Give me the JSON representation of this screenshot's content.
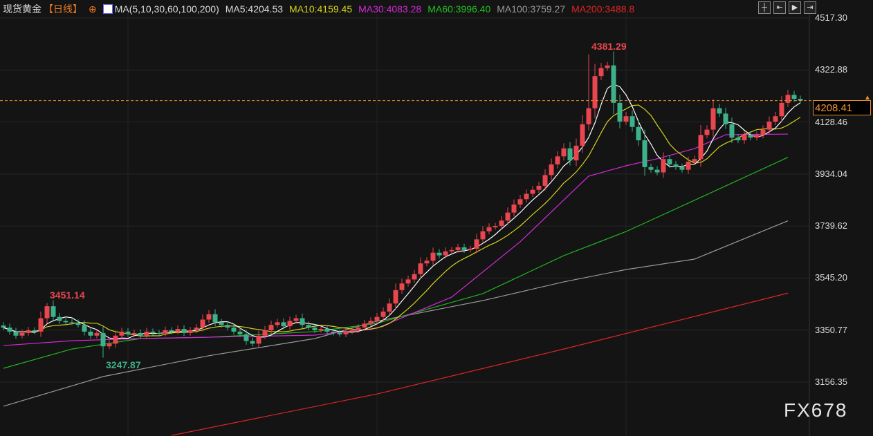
{
  "header": {
    "symbol": "现货黄金",
    "period": "【日线】",
    "indicator": "MA(5,10,30,60,100,200)",
    "ma5": "MA5:4204.53",
    "ma10": "MA10:4159.45",
    "ma30": "MA30:4083.28",
    "ma60": "MA60:3996.40",
    "ma100": "MA100:3759.27",
    "ma200": "MA200:3488.8"
  },
  "toolbar": [
    "crosshair-icon",
    "jump-start-icon",
    "play-icon",
    "exit-icon"
  ],
  "current_price": "4208.41",
  "watermark": "FX678",
  "colors": {
    "up": "#e9464f",
    "down": "#3db28a",
    "ma5": "#ffffff",
    "ma10": "#d6d21c",
    "ma30": "#d22ad6",
    "ma60": "#22b322",
    "ma100": "#9a9a9a",
    "ma200": "#e02424",
    "current": "#e8902c"
  },
  "chart_data": {
    "type": "candlestick",
    "ylim": [
      3000,
      4600
    ],
    "yticks": [
      "4517.30",
      "4322.88",
      "4128.46",
      "3934.04",
      "3739.62",
      "3545.20",
      "3350.77",
      "3156.35"
    ],
    "annotations": [
      {
        "index": 7,
        "label": "3451.14",
        "kind": "high"
      },
      {
        "index": 16,
        "label": "3247.87",
        "kind": "low"
      },
      {
        "index": 94,
        "label": "4381.29",
        "kind": "high"
      }
    ],
    "closes": [
      3360,
      3345,
      3330,
      3340,
      3350,
      3345,
      3395,
      3440,
      3400,
      3385,
      3380,
      3378,
      3370,
      3345,
      3330,
      3340,
      3290,
      3300,
      3330,
      3345,
      3335,
      3340,
      3330,
      3345,
      3340,
      3338,
      3350,
      3345,
      3355,
      3340,
      3350,
      3360,
      3390,
      3410,
      3380,
      3370,
      3360,
      3345,
      3335,
      3310,
      3300,
      3330,
      3350,
      3370,
      3380,
      3365,
      3385,
      3395,
      3370,
      3360,
      3350,
      3355,
      3345,
      3340,
      3335,
      3345,
      3350,
      3360,
      3375,
      3385,
      3400,
      3420,
      3450,
      3500,
      3525,
      3540,
      3560,
      3600,
      3610,
      3640,
      3630,
      3645,
      3650,
      3660,
      3650,
      3655,
      3690,
      3720,
      3735,
      3740,
      3760,
      3790,
      3820,
      3840,
      3860,
      3875,
      3890,
      3930,
      3970,
      4000,
      4030,
      3985,
      4040,
      4120,
      4180,
      4300,
      4330,
      4340,
      4200,
      4130,
      4150,
      4110,
      4060,
      3960,
      3950,
      3940,
      3990,
      3970,
      3960,
      3950,
      3980,
      3990,
      4080,
      4100,
      4180,
      4160,
      4120,
      4070,
      4060,
      4080,
      4070,
      4080,
      4100,
      4130,
      4150,
      4200,
      4230,
      4215,
      4208.41
    ],
    "ma_series": {
      "ma30": [
        [
          0,
          3293
        ],
        [
          11,
          3311
        ],
        [
          22,
          3319
        ],
        [
          33,
          3324
        ],
        [
          50,
          3332
        ],
        [
          60,
          3358
        ],
        [
          72,
          3474
        ],
        [
          83,
          3681
        ],
        [
          94,
          3926
        ],
        [
          100,
          3965
        ],
        [
          105,
          3991
        ],
        [
          111,
          4029
        ],
        [
          116,
          4081
        ],
        [
          126,
          4083.28
        ]
      ],
      "ma60": [
        [
          0,
          3208
        ],
        [
          11,
          3280
        ],
        [
          22,
          3319
        ],
        [
          33,
          3324
        ],
        [
          50,
          3345
        ],
        [
          60,
          3376
        ],
        [
          77,
          3487
        ],
        [
          90,
          3629
        ],
        [
          100,
          3719
        ],
        [
          111,
          3836
        ],
        [
          126,
          3996.4
        ]
      ],
      "ma100": [
        [
          0,
          3066
        ],
        [
          16,
          3177
        ],
        [
          33,
          3255
        ],
        [
          50,
          3319
        ],
        [
          60,
          3384
        ],
        [
          77,
          3461
        ],
        [
          90,
          3531
        ],
        [
          100,
          3577
        ],
        [
          111,
          3616
        ],
        [
          126,
          3759.27
        ]
      ],
      "ma200": [
        [
          27,
          2957
        ],
        [
          60,
          3112
        ],
        [
          90,
          3280
        ],
        [
          126,
          3488.8
        ]
      ]
    }
  }
}
